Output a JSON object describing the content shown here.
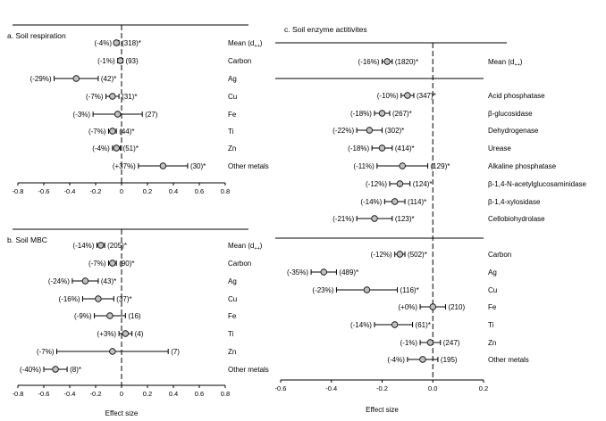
{
  "chart_data": [
    {
      "type": "forest",
      "title": "a. Soil respiration",
      "xlabel": "",
      "xlim": [
        -0.8,
        0.8
      ],
      "ticks": [
        "-0.8",
        "-0.6",
        "-0.4",
        "-0.2",
        "0",
        "0.2",
        "0.4",
        "0.6",
        "0.8"
      ],
      "rows": [
        {
          "name": "Mean (d++)",
          "pct": "(-4%)",
          "n": "(318)*",
          "est": -0.04,
          "lo": -0.055,
          "hi": -0.02
        },
        {
          "name": "Carbon",
          "pct": "(-1%)",
          "n": "(93)",
          "est": -0.01,
          "lo": -0.03,
          "hi": 0.01
        },
        {
          "name": "Ag",
          "pct": "(-29%)",
          "n": "(42)*",
          "est": -0.35,
          "lo": -0.52,
          "hi": -0.18
        },
        {
          "name": "Cu",
          "pct": "(-7%)",
          "n": "(31)*",
          "est": -0.07,
          "lo": -0.12,
          "hi": -0.02
        },
        {
          "name": "Fe",
          "pct": "(-3%)",
          "n": "(27)",
          "est": -0.03,
          "lo": -0.22,
          "hi": 0.16
        },
        {
          "name": "Ti",
          "pct": "(-7%)",
          "n": "(44)*",
          "est": -0.07,
          "lo": -0.1,
          "hi": -0.04
        },
        {
          "name": "Zn",
          "pct": "(-4%)",
          "n": "(51)*",
          "est": -0.04,
          "lo": -0.07,
          "hi": -0.01
        },
        {
          "name": "Other metals",
          "pct": "(+37%)",
          "n": "(30)*",
          "est": 0.32,
          "lo": 0.13,
          "hi": 0.51
        }
      ]
    },
    {
      "type": "forest",
      "title": "b. Soil MBC",
      "xlabel": "Effect size",
      "xlim": [
        -0.8,
        0.8
      ],
      "ticks": [
        "-0.8",
        "-0.6",
        "-0.4",
        "-0.2",
        "0",
        "0.2",
        "0.4",
        "0.6",
        "0.8"
      ],
      "rows": [
        {
          "name": "Mean (d++)",
          "pct": "(-14%)",
          "n": "(205)*",
          "est": -0.16,
          "lo": -0.19,
          "hi": -0.13
        },
        {
          "name": "Carbon",
          "pct": "(-7%)",
          "n": "(90)*",
          "est": -0.07,
          "lo": -0.1,
          "hi": -0.04
        },
        {
          "name": "Ag",
          "pct": "(-24%)",
          "n": "(43)*",
          "est": -0.28,
          "lo": -0.38,
          "hi": -0.18
        },
        {
          "name": "Cu",
          "pct": "(-16%)",
          "n": "(37)*",
          "est": -0.18,
          "lo": -0.3,
          "hi": -0.06
        },
        {
          "name": "Fe",
          "pct": "(-9%)",
          "n": "(16)",
          "est": -0.09,
          "lo": -0.21,
          "hi": 0.03
        },
        {
          "name": "Ti",
          "pct": "(+3%)",
          "n": "(4)",
          "est": 0.03,
          "lo": -0.02,
          "hi": 0.08
        },
        {
          "name": "Zn",
          "pct": "(-7%)",
          "n": "(7)",
          "est": -0.07,
          "lo": -0.5,
          "hi": 0.36
        },
        {
          "name": "Other metals",
          "pct": "(-40%)",
          "n": "(8)*",
          "est": -0.51,
          "lo": -0.6,
          "hi": -0.42
        }
      ]
    },
    {
      "type": "forest",
      "title": "c. Soil enzyme actitivites",
      "xlabel": "Effect size",
      "xlim": [
        -0.6,
        0.2
      ],
      "ticks": [
        "-0.6",
        "-0.4",
        "-0.2",
        "0.0",
        "0.2"
      ],
      "rows": [
        {
          "name": "Mean (d++)",
          "pct": "(-16%)",
          "n": "(1820)*",
          "est": -0.18,
          "lo": -0.2,
          "hi": -0.16,
          "group": 0
        },
        {
          "name": "Acid phosphatase",
          "pct": "(-10%)",
          "n": "(347)*",
          "est": -0.1,
          "lo": -0.125,
          "hi": -0.075,
          "group": 1
        },
        {
          "name": "β-glucosidase",
          "pct": "(-18%)",
          "n": "(267)*",
          "est": -0.2,
          "lo": -0.23,
          "hi": -0.17,
          "group": 1
        },
        {
          "name": "Dehydrogenase",
          "pct": "(-22%)",
          "n": "(302)*",
          "est": -0.25,
          "lo": -0.3,
          "hi": -0.2,
          "group": 1
        },
        {
          "name": "Urease",
          "pct": "(-18%)",
          "n": "(414)*",
          "est": -0.2,
          "lo": -0.24,
          "hi": -0.16,
          "group": 1
        },
        {
          "name": "Alkaline phosphatase",
          "pct": "(-11%)",
          "n": "(129)*",
          "est": -0.12,
          "lo": -0.22,
          "hi": -0.02,
          "group": 1
        },
        {
          "name": "β-1,4-N-acetylglucosaminidase",
          "pct": "(-12%)",
          "n": "(124)*",
          "est": -0.13,
          "lo": -0.17,
          "hi": -0.09,
          "group": 1
        },
        {
          "name": "β-1,4-xylosidase",
          "pct": "(-14%)",
          "n": "(114)*",
          "est": -0.15,
          "lo": -0.19,
          "hi": -0.11,
          "group": 1
        },
        {
          "name": "Cellobiohydrolase",
          "pct": "(-21%)",
          "n": "(123)*",
          "est": -0.23,
          "lo": -0.3,
          "hi": -0.16,
          "group": 1
        },
        {
          "name": "Carbon",
          "pct": "(-12%)",
          "n": "(502)*",
          "est": -0.13,
          "lo": -0.15,
          "hi": -0.11,
          "group": 2
        },
        {
          "name": "Ag",
          "pct": "(-35%)",
          "n": "(489)*",
          "est": -0.43,
          "lo": -0.48,
          "hi": -0.38,
          "group": 2
        },
        {
          "name": "Cu",
          "pct": "(-23%)",
          "n": "(116)*",
          "est": -0.26,
          "lo": -0.38,
          "hi": -0.14,
          "group": 2
        },
        {
          "name": "Fe",
          "pct": "(+0%)",
          "n": "(210)",
          "est": 0.0,
          "lo": -0.05,
          "hi": 0.05,
          "group": 2
        },
        {
          "name": "Ti",
          "pct": "(-14%)",
          "n": "(61)*",
          "est": -0.15,
          "lo": -0.23,
          "hi": -0.08,
          "group": 2
        },
        {
          "name": "Zn",
          "pct": "(-1%)",
          "n": "(247)",
          "est": -0.01,
          "lo": -0.05,
          "hi": 0.03,
          "group": 2
        },
        {
          "name": "Other metals",
          "pct": "(-4%)",
          "n": "(195)",
          "est": -0.04,
          "lo": -0.1,
          "hi": 0.02,
          "group": 2
        }
      ]
    }
  ],
  "colors": {
    "marker": "#c0c0c0",
    "line": "#000000"
  }
}
